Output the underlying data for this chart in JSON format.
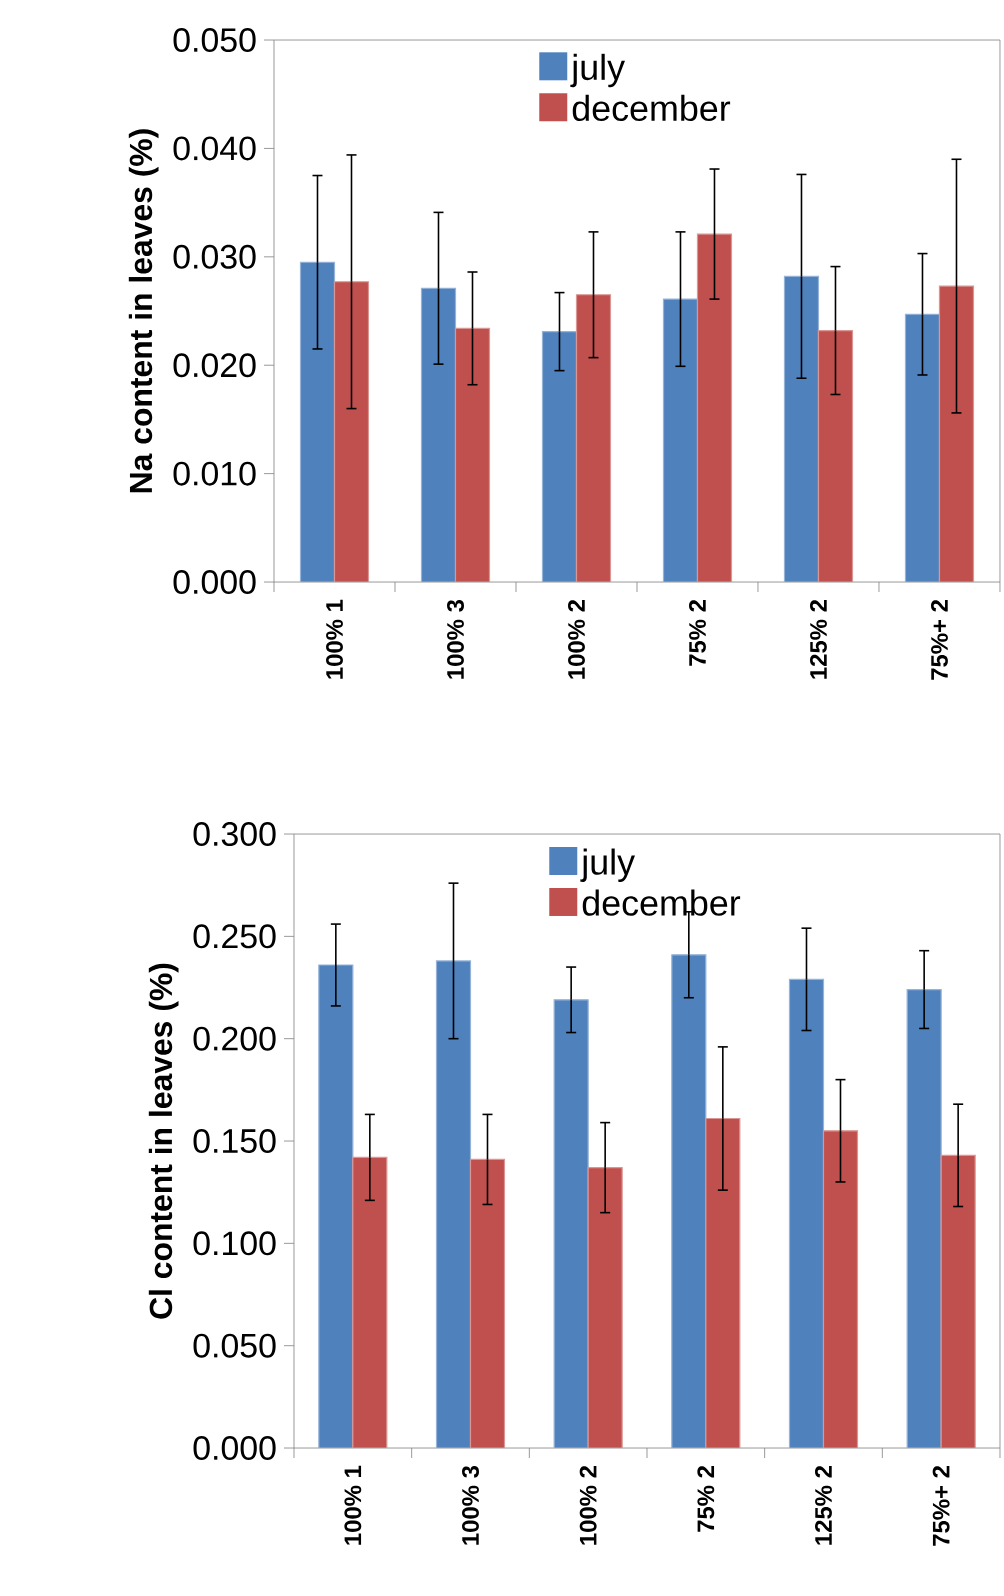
{
  "chart_data": [
    {
      "type": "bar",
      "ylabel": "Na content in leaves (%)",
      "categories": [
        "100% 1",
        "100% 3",
        "100% 2",
        "75% 2",
        "125% 2",
        "75%+ 2"
      ],
      "series": [
        {
          "name": "july",
          "color": "#4f81bd",
          "values": [
            0.0295,
            0.0271,
            0.0231,
            0.0261,
            0.0282,
            0.0247
          ],
          "errors": [
            0.008,
            0.007,
            0.0036,
            0.0062,
            0.0094,
            0.0056
          ]
        },
        {
          "name": "december",
          "color": "#c0504d",
          "values": [
            0.0277,
            0.0234,
            0.0265,
            0.0321,
            0.0232,
            0.0273
          ],
          "errors": [
            0.0117,
            0.0052,
            0.0058,
            0.006,
            0.0059,
            0.0117
          ]
        }
      ],
      "ylim": [
        0,
        0.05
      ],
      "yticks": [
        {
          "value": 0,
          "label": "0.000"
        },
        {
          "value": 0.01,
          "label": "0.010"
        },
        {
          "value": 0.02,
          "label": "0.020"
        },
        {
          "value": 0.03,
          "label": "0.030"
        },
        {
          "value": 0.04,
          "label": "0.040"
        },
        {
          "value": 0.05,
          "label": "0.050"
        }
      ],
      "legend": "top"
    },
    {
      "type": "bar",
      "ylabel": "Cl content in leaves (%)",
      "categories": [
        "100% 1",
        "100% 3",
        "100% 2",
        "75% 2",
        "125% 2",
        "75%+ 2"
      ],
      "series": [
        {
          "name": "july",
          "color": "#4f81bd",
          "values": [
            0.236,
            0.238,
            0.219,
            0.241,
            0.229,
            0.224
          ],
          "errors": [
            0.02,
            0.038,
            0.016,
            0.021,
            0.025,
            0.019
          ]
        },
        {
          "name": "december",
          "color": "#c0504d",
          "values": [
            0.142,
            0.141,
            0.137,
            0.161,
            0.155,
            0.143
          ],
          "errors": [
            0.021,
            0.022,
            0.022,
            0.035,
            0.025,
            0.025
          ]
        }
      ],
      "ylim": [
        0,
        0.3
      ],
      "yticks": [
        {
          "value": 0,
          "label": "0.000"
        },
        {
          "value": 0.05,
          "label": "0.050"
        },
        {
          "value": 0.1,
          "label": "0.100"
        },
        {
          "value": 0.15,
          "label": "0.150"
        },
        {
          "value": 0.2,
          "label": "0.200"
        },
        {
          "value": 0.25,
          "label": "0.250"
        },
        {
          "value": 0.3,
          "label": "0.300"
        }
      ],
      "legend": "top"
    }
  ]
}
